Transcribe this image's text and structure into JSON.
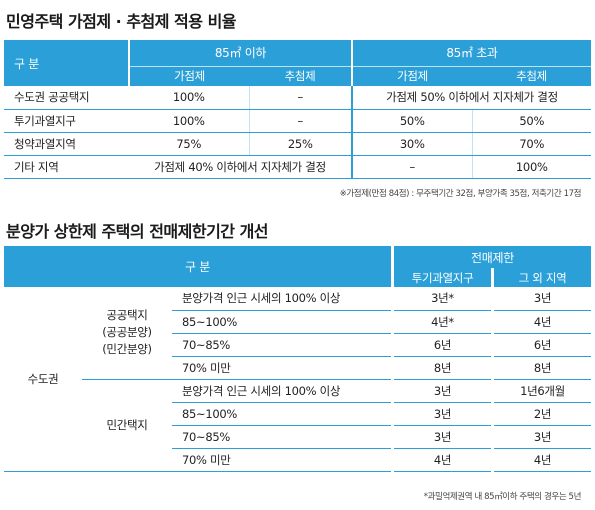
{
  "section1": {
    "title": "민영주택 가점제 · 추첨제 적용 비율",
    "header": {
      "category": "구 분",
      "group1": "85㎡ 이하",
      "group2": "85㎡ 초과",
      "sub1": "가점제",
      "sub2": "추첨제",
      "sub3": "가점제",
      "sub4": "추첨제"
    },
    "rows": [
      {
        "label": "수도권 공공택지",
        "c1": "100%",
        "c2": "–",
        "merged_over": "가점제 50% 이하에서 지자체가 결정"
      },
      {
        "label": "투기과열지구",
        "c1": "100%",
        "c2": "–",
        "c3": "50%",
        "c4": "50%"
      },
      {
        "label": "청약과열지역",
        "c1": "75%",
        "c2": "25%",
        "c3": "30%",
        "c4": "70%"
      },
      {
        "label": "기타 지역",
        "merged_under": "가점제 40% 이하에서 지자체가 결정",
        "c3": "–",
        "c4": "100%"
      }
    ],
    "footnote": "※가점제(만점 84점) : 무주택기간 32점, 부양가족 35점, 저축기간 17점"
  },
  "section2": {
    "title": "분양가 상한제 주택의 전매제한기간 개선",
    "header": {
      "category": "구 분",
      "restriction": "전매제한",
      "col1": "투기과열지구",
      "col2": "그 외 지역"
    },
    "region": "수도권",
    "groups": [
      {
        "name_lines": [
          "공공택지",
          "(공공분양)",
          "(민간분양)"
        ],
        "rows": [
          {
            "label": "분양가격 인근 시세의 100% 이상",
            "v1": "3년*",
            "v2": "3년"
          },
          {
            "label": "85~100%",
            "v1": "4년*",
            "v2": "4년"
          },
          {
            "label": "70~85%",
            "v1": "6년",
            "v2": "6년"
          },
          {
            "label": "70% 미만",
            "v1": "8년",
            "v2": "8년"
          }
        ]
      },
      {
        "name_lines": [
          "민간택지"
        ],
        "rows": [
          {
            "label": "분양가격 인근 시세의 100% 이상",
            "v1": "3년",
            "v2": "1년6개월"
          },
          {
            "label": "85~100%",
            "v1": "3년",
            "v2": "2년"
          },
          {
            "label": "70~85%",
            "v1": "3년",
            "v2": "3년"
          },
          {
            "label": "70% 미만",
            "v1": "4년",
            "v2": "4년"
          }
        ]
      }
    ],
    "footnote": "*과밀억제권역 내  85㎡이하 주택의 경우는 5년"
  },
  "colors": {
    "accent": "#2a9fd8",
    "accent_light": "#bfe3f5"
  }
}
